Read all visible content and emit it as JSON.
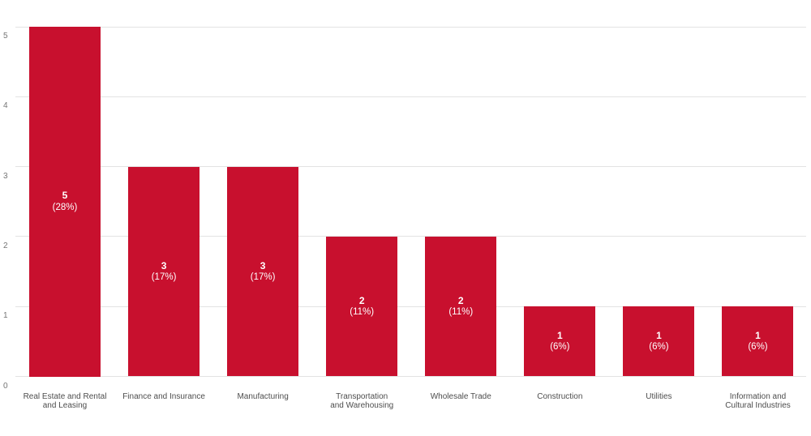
{
  "chart_data": {
    "type": "bar",
    "title": "",
    "xlabel": "",
    "ylabel": "",
    "categories": [
      "Real Estate and Rental and Leasing",
      "Finance and Insurance",
      "Manufacturing",
      "Transportation and Warehousing",
      "Wholesale Trade",
      "Construction",
      "Utilities",
      "Information and Cultural Industries"
    ],
    "category_lines": [
      [
        "Real Estate and Rental",
        "and Leasing"
      ],
      [
        "Finance and Insurance"
      ],
      [
        "Manufacturing"
      ],
      [
        "Transportation",
        "and Warehousing"
      ],
      [
        "Wholesale Trade"
      ],
      [
        "Construction"
      ],
      [
        "Utilities"
      ],
      [
        "Information and",
        "Cultural Industries"
      ]
    ],
    "values": [
      5,
      3,
      3,
      2,
      2,
      1,
      1,
      1
    ],
    "value_labels": [
      "5",
      "3",
      "3",
      "2",
      "2",
      "1",
      "1",
      "1"
    ],
    "percent_labels": [
      "(28%)",
      "(17%)",
      "(17%)",
      "(11%)",
      "(11%)",
      "(6%)",
      "(6%)",
      "(6%)"
    ],
    "yticks": [
      0,
      1,
      2,
      3,
      4,
      5
    ],
    "ylim": [
      0,
      5
    ],
    "grid": "horizontal",
    "legend": "none",
    "colors": {
      "bar": "#C8102E",
      "bar_label_text": "#FFFFFF",
      "gridline": "#E3E3E3",
      "axis_tick_text": "#757575",
      "category_text": "#4D4D4D",
      "background": "#FFFFFF"
    }
  }
}
